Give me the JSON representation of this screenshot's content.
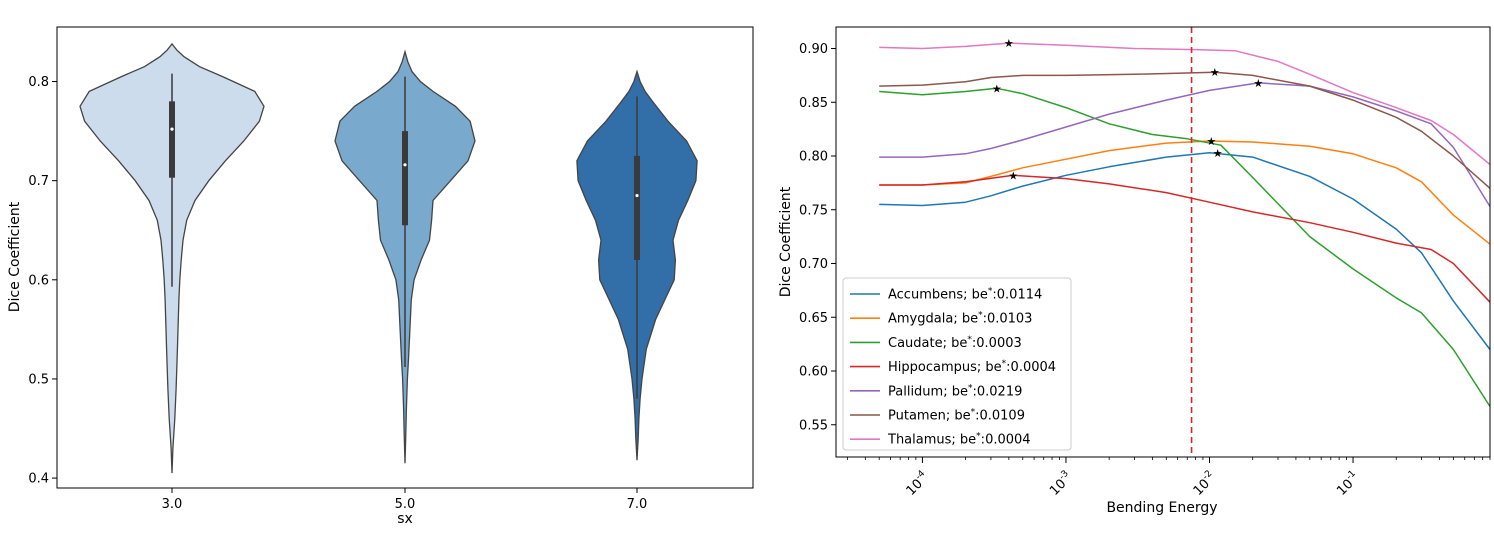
{
  "chart_data": [
    {
      "type": "violin",
      "xlabel": "sx",
      "ylabel": "Dice Coefficient",
      "ylim": [
        0.39,
        0.855
      ],
      "yticks": [
        "0.4",
        "0.5",
        "0.6",
        "0.7",
        "0.8"
      ],
      "categories": [
        "3.0",
        "5.0",
        "7.0"
      ],
      "colors": [
        "#cddcec",
        "#79aacd",
        "#326fa8"
      ],
      "violins": [
        {
          "category": "3.0",
          "min": 0.405,
          "max": 0.838,
          "q1": 0.703,
          "median": 0.752,
          "q3": 0.78,
          "whisker_low": 0.593,
          "whisker_high": 0.808,
          "profile": [
            [
              0.405,
              0.0
            ],
            [
              0.43,
              0.01
            ],
            [
              0.46,
              0.03
            ],
            [
              0.49,
              0.045
            ],
            [
              0.52,
              0.055
            ],
            [
              0.55,
              0.065
            ],
            [
              0.58,
              0.075
            ],
            [
              0.6,
              0.085
            ],
            [
              0.62,
              0.1
            ],
            [
              0.64,
              0.12
            ],
            [
              0.66,
              0.16
            ],
            [
              0.68,
              0.25
            ],
            [
              0.7,
              0.4
            ],
            [
              0.72,
              0.58
            ],
            [
              0.74,
              0.78
            ],
            [
              0.76,
              0.95
            ],
            [
              0.775,
              1.0
            ],
            [
              0.79,
              0.9
            ],
            [
              0.805,
              0.55
            ],
            [
              0.815,
              0.3
            ],
            [
              0.825,
              0.13
            ],
            [
              0.832,
              0.05
            ],
            [
              0.838,
              0.0
            ]
          ]
        },
        {
          "category": "5.0",
          "min": 0.415,
          "max": 0.83,
          "q1": 0.655,
          "median": 0.716,
          "q3": 0.75,
          "whisker_low": 0.512,
          "whisker_high": 0.805,
          "profile": [
            [
              0.415,
              0.0
            ],
            [
              0.44,
              0.01
            ],
            [
              0.47,
              0.02
            ],
            [
              0.5,
              0.035
            ],
            [
              0.52,
              0.05
            ],
            [
              0.55,
              0.07
            ],
            [
              0.58,
              0.09
            ],
            [
              0.6,
              0.13
            ],
            [
              0.62,
              0.23
            ],
            [
              0.64,
              0.35
            ],
            [
              0.66,
              0.38
            ],
            [
              0.68,
              0.4
            ],
            [
              0.7,
              0.65
            ],
            [
              0.72,
              0.9
            ],
            [
              0.74,
              1.0
            ],
            [
              0.76,
              0.93
            ],
            [
              0.775,
              0.72
            ],
            [
              0.79,
              0.4
            ],
            [
              0.8,
              0.22
            ],
            [
              0.81,
              0.1
            ],
            [
              0.82,
              0.04
            ],
            [
              0.83,
              0.0
            ]
          ]
        },
        {
          "category": "7.0",
          "min": 0.418,
          "max": 0.81,
          "q1": 0.62,
          "median": 0.685,
          "q3": 0.725,
          "whisker_low": 0.48,
          "whisker_high": 0.785,
          "profile": [
            [
              0.418,
              0.0
            ],
            [
              0.44,
              0.02
            ],
            [
              0.46,
              0.03
            ],
            [
              0.48,
              0.05
            ],
            [
              0.5,
              0.08
            ],
            [
              0.53,
              0.15
            ],
            [
              0.56,
              0.3
            ],
            [
              0.58,
              0.45
            ],
            [
              0.6,
              0.6
            ],
            [
              0.62,
              0.62
            ],
            [
              0.64,
              0.58
            ],
            [
              0.66,
              0.67
            ],
            [
              0.68,
              0.82
            ],
            [
              0.7,
              0.95
            ],
            [
              0.72,
              0.97
            ],
            [
              0.74,
              0.8
            ],
            [
              0.76,
              0.5
            ],
            [
              0.78,
              0.25
            ],
            [
              0.79,
              0.13
            ],
            [
              0.8,
              0.05
            ],
            [
              0.81,
              0.0
            ]
          ]
        }
      ]
    },
    {
      "type": "line",
      "xscale": "log",
      "xlabel": "Bending Energy",
      "ylabel": "Dice Coefficient",
      "xlim": [
        2.5e-05,
        0.9
      ],
      "ylim": [
        0.52,
        0.92
      ],
      "xticks": [
        {
          "value": 0.0001,
          "label": "10^-4"
        },
        {
          "value": 0.001,
          "label": "10^-3"
        },
        {
          "value": 0.01,
          "label": "10^-2"
        },
        {
          "value": 0.1,
          "label": "10^-1"
        }
      ],
      "yticks": [
        "0.55",
        "0.60",
        "0.65",
        "0.70",
        "0.75",
        "0.80",
        "0.85",
        "0.90"
      ],
      "vline": {
        "x": 0.0075,
        "color": "#d62728",
        "style": "dashed"
      },
      "legend_position": "lower-left",
      "series": [
        {
          "name": "Accumbens",
          "be_star": "0.0114",
          "color": "#1f77b4",
          "star": [
            0.0114,
            0.803
          ],
          "points": [
            [
              5e-05,
              0.755
            ],
            [
              0.0001,
              0.754
            ],
            [
              0.0002,
              0.757
            ],
            [
              0.0003,
              0.763
            ],
            [
              0.0005,
              0.772
            ],
            [
              0.001,
              0.782
            ],
            [
              0.002,
              0.79
            ],
            [
              0.005,
              0.799
            ],
            [
              0.01,
              0.803
            ],
            [
              0.02,
              0.799
            ],
            [
              0.05,
              0.781
            ],
            [
              0.1,
              0.76
            ],
            [
              0.2,
              0.732
            ],
            [
              0.3,
              0.71
            ],
            [
              0.5,
              0.665
            ],
            [
              0.9,
              0.62
            ]
          ]
        },
        {
          "name": "Amygdala",
          "be_star": "0.0103",
          "color": "#ff7f0e",
          "star": [
            0.0103,
            0.814
          ],
          "points": [
            [
              5e-05,
              0.773
            ],
            [
              0.0001,
              0.773
            ],
            [
              0.0002,
              0.775
            ],
            [
              0.0003,
              0.781
            ],
            [
              0.0005,
              0.789
            ],
            [
              0.001,
              0.797
            ],
            [
              0.002,
              0.805
            ],
            [
              0.005,
              0.812
            ],
            [
              0.01,
              0.814
            ],
            [
              0.02,
              0.813
            ],
            [
              0.05,
              0.809
            ],
            [
              0.1,
              0.802
            ],
            [
              0.2,
              0.789
            ],
            [
              0.3,
              0.776
            ],
            [
              0.5,
              0.745
            ],
            [
              0.9,
              0.718
            ]
          ]
        },
        {
          "name": "Caudate",
          "be_star": "0.0003",
          "color": "#2ca02c",
          "star": [
            0.00033,
            0.863
          ],
          "points": [
            [
              5e-05,
              0.86
            ],
            [
              0.0001,
              0.857
            ],
            [
              0.0002,
              0.86
            ],
            [
              0.00033,
              0.863
            ],
            [
              0.0005,
              0.858
            ],
            [
              0.001,
              0.845
            ],
            [
              0.002,
              0.83
            ],
            [
              0.004,
              0.82
            ],
            [
              0.007,
              0.816
            ],
            [
              0.012,
              0.81
            ],
            [
              0.02,
              0.78
            ],
            [
              0.05,
              0.725
            ],
            [
              0.1,
              0.695
            ],
            [
              0.2,
              0.668
            ],
            [
              0.3,
              0.654
            ],
            [
              0.5,
              0.62
            ],
            [
              0.9,
              0.567
            ]
          ]
        },
        {
          "name": "Hippocampus",
          "be_star": "0.0004",
          "color": "#d62728",
          "star": [
            0.00043,
            0.782
          ],
          "points": [
            [
              5e-05,
              0.773
            ],
            [
              0.0001,
              0.773
            ],
            [
              0.0002,
              0.776
            ],
            [
              0.00043,
              0.782
            ],
            [
              0.001,
              0.779
            ],
            [
              0.002,
              0.774
            ],
            [
              0.005,
              0.766
            ],
            [
              0.01,
              0.757
            ],
            [
              0.02,
              0.748
            ],
            [
              0.05,
              0.738
            ],
            [
              0.1,
              0.729
            ],
            [
              0.2,
              0.719
            ],
            [
              0.35,
              0.713
            ],
            [
              0.5,
              0.7
            ],
            [
              0.9,
              0.664
            ]
          ]
        },
        {
          "name": "Pallidum",
          "be_star": "0.0219",
          "color": "#9467bd",
          "star": [
            0.0219,
            0.868
          ],
          "points": [
            [
              5e-05,
              0.799
            ],
            [
              0.0001,
              0.799
            ],
            [
              0.0002,
              0.802
            ],
            [
              0.0003,
              0.807
            ],
            [
              0.0005,
              0.815
            ],
            [
              0.001,
              0.827
            ],
            [
              0.002,
              0.839
            ],
            [
              0.005,
              0.852
            ],
            [
              0.01,
              0.861
            ],
            [
              0.0219,
              0.868
            ],
            [
              0.05,
              0.865
            ],
            [
              0.1,
              0.855
            ],
            [
              0.2,
              0.842
            ],
            [
              0.35,
              0.83
            ],
            [
              0.5,
              0.808
            ],
            [
              0.9,
              0.753
            ]
          ]
        },
        {
          "name": "Putamen",
          "be_star": "0.0109",
          "color": "#8c564b",
          "star": [
            0.0109,
            0.878
          ],
          "points": [
            [
              5e-05,
              0.865
            ],
            [
              0.0001,
              0.866
            ],
            [
              0.0002,
              0.869
            ],
            [
              0.0003,
              0.873
            ],
            [
              0.0005,
              0.875
            ],
            [
              0.001,
              0.875
            ],
            [
              0.003,
              0.876
            ],
            [
              0.0109,
              0.878
            ],
            [
              0.02,
              0.875
            ],
            [
              0.05,
              0.865
            ],
            [
              0.1,
              0.852
            ],
            [
              0.2,
              0.836
            ],
            [
              0.3,
              0.823
            ],
            [
              0.5,
              0.8
            ],
            [
              0.9,
              0.77
            ]
          ]
        },
        {
          "name": "Thalamus",
          "be_star": "0.0004",
          "color": "#e377c2",
          "star": [
            0.0004,
            0.905
          ],
          "points": [
            [
              5e-05,
              0.901
            ],
            [
              0.0001,
              0.9
            ],
            [
              0.0002,
              0.902
            ],
            [
              0.0004,
              0.905
            ],
            [
              0.001,
              0.903
            ],
            [
              0.003,
              0.9
            ],
            [
              0.008,
              0.899
            ],
            [
              0.015,
              0.898
            ],
            [
              0.03,
              0.888
            ],
            [
              0.05,
              0.876
            ],
            [
              0.1,
              0.859
            ],
            [
              0.2,
              0.845
            ],
            [
              0.35,
              0.833
            ],
            [
              0.5,
              0.82
            ],
            [
              0.9,
              0.792
            ]
          ]
        }
      ]
    }
  ]
}
